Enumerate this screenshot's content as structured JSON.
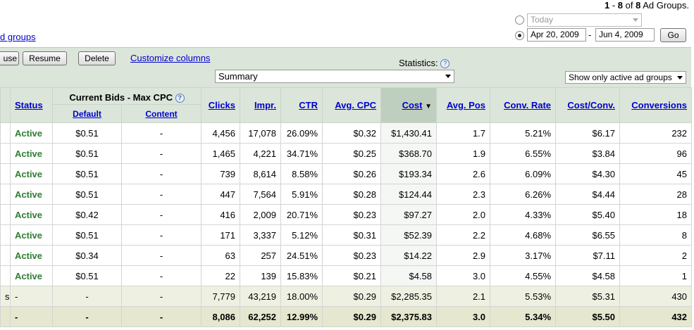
{
  "range": {
    "start": "1",
    "end": "8",
    "total": "8",
    "suffix": "Ad Groups."
  },
  "adgroups_link": "d groups",
  "date": {
    "preset": "Today",
    "from": "Apr 20, 2009",
    "separator": "-",
    "to": "Jun 4, 2009",
    "go_label": "Go"
  },
  "toolbar": {
    "pause_label": "use",
    "resume_label": "Resume",
    "delete_label": "Delete",
    "customize_label": "Customize columns",
    "stats_label": "Statistics:",
    "help": "?",
    "summary_value": "Summary",
    "filter_value": "Show only active ad groups"
  },
  "columns": {
    "status": "Status",
    "bids": "Current Bids - Max CPC",
    "default": "Default",
    "content": "Content",
    "clicks": "Clicks",
    "impr": "Impr.",
    "ctr": "CTR",
    "avg_cpc": "Avg. CPC",
    "cost": "Cost",
    "sort_arrow": "▼",
    "avg_pos": "Avg. Pos",
    "conv_rate": "Conv. Rate",
    "cost_conv": "Cost/Conv.",
    "conversions": "Conversions"
  },
  "rows": [
    {
      "status": "Active",
      "default": "$0.51",
      "content": "-",
      "clicks": "4,456",
      "impr": "17,078",
      "ctr": "26.09%",
      "avg_cpc": "$0.32",
      "cost": "$1,430.41",
      "avg_pos": "1.7",
      "conv_rate": "5.21%",
      "cost_conv": "$6.17",
      "conversions": "232"
    },
    {
      "status": "Active",
      "default": "$0.51",
      "content": "-",
      "clicks": "1,465",
      "impr": "4,221",
      "ctr": "34.71%",
      "avg_cpc": "$0.25",
      "cost": "$368.70",
      "avg_pos": "1.9",
      "conv_rate": "6.55%",
      "cost_conv": "$3.84",
      "conversions": "96"
    },
    {
      "status": "Active",
      "default": "$0.51",
      "content": "-",
      "clicks": "739",
      "impr": "8,614",
      "ctr": "8.58%",
      "avg_cpc": "$0.26",
      "cost": "$193.34",
      "avg_pos": "2.6",
      "conv_rate": "6.09%",
      "cost_conv": "$4.30",
      "conversions": "45"
    },
    {
      "status": "Active",
      "default": "$0.51",
      "content": "-",
      "clicks": "447",
      "impr": "7,564",
      "ctr": "5.91%",
      "avg_cpc": "$0.28",
      "cost": "$124.44",
      "avg_pos": "2.3",
      "conv_rate": "6.26%",
      "cost_conv": "$4.44",
      "conversions": "28"
    },
    {
      "status": "Active",
      "default": "$0.42",
      "content": "-",
      "clicks": "416",
      "impr": "2,009",
      "ctr": "20.71%",
      "avg_cpc": "$0.23",
      "cost": "$97.27",
      "avg_pos": "2.0",
      "conv_rate": "4.33%",
      "cost_conv": "$5.40",
      "conversions": "18"
    },
    {
      "status": "Active",
      "default": "$0.51",
      "content": "-",
      "clicks": "171",
      "impr": "3,337",
      "ctr": "5.12%",
      "avg_cpc": "$0.31",
      "cost": "$52.39",
      "avg_pos": "2.2",
      "conv_rate": "4.68%",
      "cost_conv": "$6.55",
      "conversions": "8"
    },
    {
      "status": "Active",
      "default": "$0.34",
      "content": "-",
      "clicks": "63",
      "impr": "257",
      "ctr": "24.51%",
      "avg_cpc": "$0.23",
      "cost": "$14.22",
      "avg_pos": "2.9",
      "conv_rate": "3.17%",
      "cost_conv": "$7.11",
      "conversions": "2"
    },
    {
      "status": "Active",
      "default": "$0.51",
      "content": "-",
      "clicks": "22",
      "impr": "139",
      "ctr": "15.83%",
      "avg_cpc": "$0.21",
      "cost": "$4.58",
      "avg_pos": "3.0",
      "conv_rate": "4.55%",
      "cost_conv": "$4.58",
      "conversions": "1"
    }
  ],
  "totals": [
    {
      "name": "s",
      "status": "-",
      "default": "-",
      "content": "-",
      "clicks": "7,779",
      "impr": "43,219",
      "ctr": "18.00%",
      "avg_cpc": "$0.29",
      "cost": "$2,285.35",
      "avg_pos": "2.1",
      "conv_rate": "5.53%",
      "cost_conv": "$5.31",
      "conversions": "430"
    },
    {
      "name": "",
      "status": "-",
      "default": "-",
      "content": "-",
      "clicks": "8,086",
      "impr": "62,252",
      "ctr": "12.99%",
      "avg_cpc": "$0.29",
      "cost": "$2,375.83",
      "avg_pos": "3.0",
      "conv_rate": "5.34%",
      "cost_conv": "$5.50",
      "conversions": "432"
    }
  ]
}
